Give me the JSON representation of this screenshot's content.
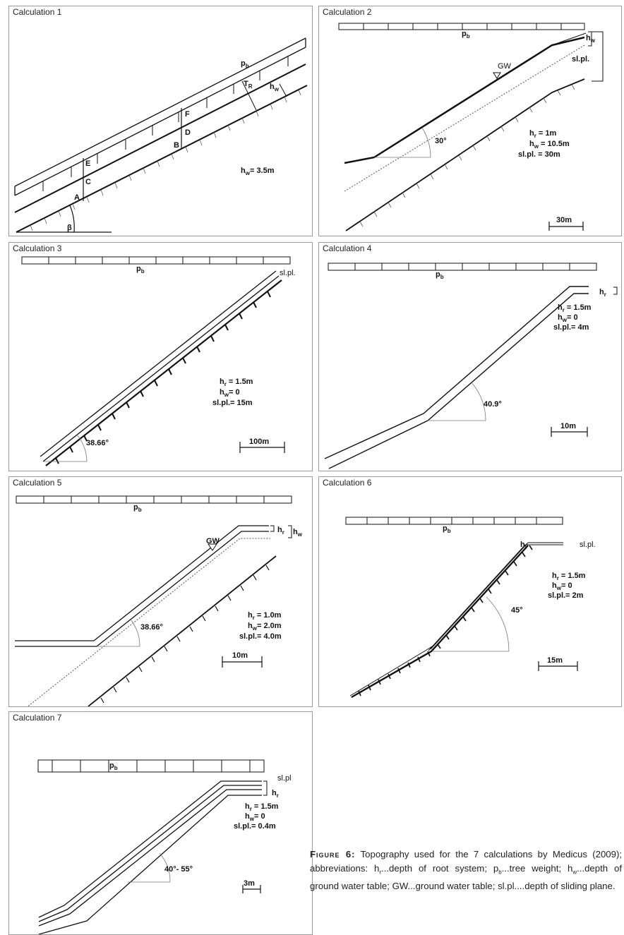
{
  "panels": [
    {
      "title": "Calculation 1",
      "labels": {
        "pb": "p",
        "pb_sub": "b",
        "tr": "T",
        "tr_sub": "R",
        "hw": "h",
        "hw_sub": "w",
        "f": "F",
        "d": "D",
        "b": "B",
        "e": "E",
        "c": "C",
        "a": "A",
        "beta": "β",
        "hw_val": "h",
        "hw_val_sub": "w",
        "hw_val_rest": "= 3.5m"
      }
    },
    {
      "title": "Calculation 2",
      "labels": {
        "pb": "p",
        "pb_sub": "b",
        "hw": "h",
        "hw_sub": "w",
        "slpl": "sl.pl.",
        "gw": "GW",
        "angle": "30°",
        "hr": "h",
        "hr_sub": "r",
        "hr_val": " = 1m",
        "hw2": "h",
        "hw2_sub": "w",
        "hw2_val": " = 10.5m",
        "sl_val": "sl.pl. = 30m",
        "scale": "30m"
      }
    },
    {
      "title": "Calculation 3",
      "labels": {
        "pb": "p",
        "pb_sub": "b",
        "slpl": "sl.pl.",
        "hr": "h",
        "hr_sub": "r",
        "hr_val": " = 1.5m",
        "hw": "h",
        "hw_sub": "w",
        "hw_val": "= 0",
        "sl_val": "sl.pl.= 15m",
        "angle": "38.66°",
        "scale": "100m"
      }
    },
    {
      "title": "Calculation 4",
      "labels": {
        "pb": "p",
        "pb_sub": "b",
        "hr_tag": "h",
        "hr_tag_sub": "r",
        "hr": "h",
        "hr_sub": "r",
        "hr_val": " = 1.5m",
        "hw": "h",
        "hw_sub": "w",
        "hw_val": "= 0",
        "sl_val": "sl.pl.= 4m",
        "angle": "40.9°",
        "scale": "10m"
      }
    },
    {
      "title": "Calculation 5",
      "labels": {
        "pb": "p",
        "pb_sub": "b",
        "gw": "GW",
        "hr_tag": "h",
        "hr_tag_sub": "r",
        "hw_tag": "h",
        "hw_tag_sub": "w",
        "angle": "38.66°",
        "hr": "h",
        "hr_sub": "r",
        "hr_val": " = 1.0m",
        "hw": "h",
        "hw_sub": "w",
        "hw_val": "= 2.0m",
        "sl_val": "sl.pl.= 4.0m",
        "scale": "10m"
      }
    },
    {
      "title": "Calculation 6",
      "labels": {
        "pb": "p",
        "pb_sub": "b",
        "hr_tag": "h",
        "hr_tag_sub": "r",
        "slpl": "sl.pl.",
        "hr": "h",
        "hr_sub": "r",
        "hr_val": " = 1.5m",
        "hw": "h",
        "hw_sub": "w",
        "hw_val": "= 0",
        "sl_val": "sl.pl.= 2m",
        "angle": "45°",
        "scale": "15m"
      }
    },
    {
      "title": "Calculation 7",
      "labels": {
        "pb": "p",
        "pb_sub": "b",
        "hr_tag": "h",
        "hr_tag_sub": "r",
        "slpl": "sl.pl",
        "hr": "h",
        "hr_sub": "r",
        "hr_val": " = 1.5m",
        "hw": "h",
        "hw_sub": "w",
        "hw_val": "= 0",
        "sl_val": "sl.pl.= 0.4m",
        "angle": "40°- 55°",
        "scale": "3m"
      }
    }
  ],
  "caption": {
    "figure": "Figure 6:",
    "text": " Topography used for the 7 calculations by Medicus (2009); abbreviations: h",
    "t_hr_sub": "r",
    "t2": "...depth of root system; p",
    "t_pb_sub": "b",
    "t3": "...tree weight; h",
    "t_hw_sub": "w",
    "t4": "...depth of ground water table; GW...ground water table; sl.pl....depth of sliding plane."
  }
}
